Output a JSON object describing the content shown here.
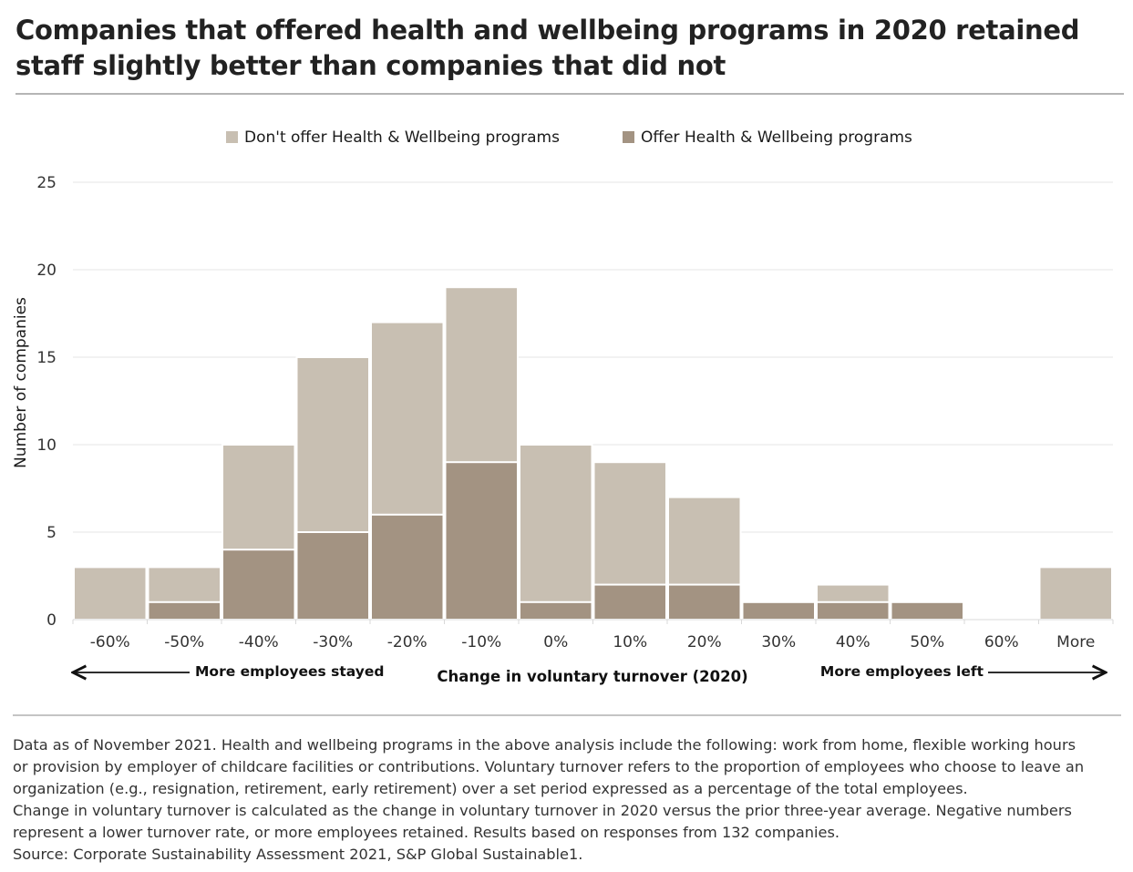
{
  "title": "Companies that offered health and wellbeing programs in 2020 retained staff slightly better than companies that did not",
  "colors": {
    "dont_offer": "#c8bfb2",
    "offer": "#a39382",
    "grid": "#e6e6e6",
    "text": "#1a1a1a"
  },
  "chart_data": {
    "type": "bar",
    "stacked": false,
    "overlapping": true,
    "categories": [
      "-60%",
      "-50%",
      "-40%",
      "-30%",
      "-20%",
      "-10%",
      "0%",
      "10%",
      "20%",
      "30%",
      "40%",
      "50%",
      "60%",
      "More"
    ],
    "series": [
      {
        "name": "Don't offer Health & Wellbeing programs",
        "color": "#c8bfb2",
        "values": [
          3,
          3,
          10,
          15,
          17,
          19,
          10,
          9,
          7,
          0,
          2,
          0,
          0,
          3
        ]
      },
      {
        "name": "Offer Health & Wellbeing programs",
        "color": "#a39382",
        "values": [
          0,
          1,
          4,
          5,
          6,
          9,
          1,
          2,
          2,
          1,
          1,
          1,
          0,
          0
        ]
      }
    ],
    "xlabel": "Change in voluntary turnover (2020)",
    "ylabel": "Number of companies",
    "ylim": [
      0,
      25
    ],
    "yticks": [
      0,
      5,
      10,
      15,
      20,
      25
    ],
    "grid": true,
    "legend_position": "top",
    "annotations": {
      "left": "More employees stayed",
      "right": "More employees left"
    }
  },
  "footnote": {
    "lines": [
      "Data as of November 2021. Health and wellbeing programs in the above analysis include the following: work from home, flexible working hours",
      "or provision by employer of childcare facilities or contributions. Voluntary turnover refers to the proportion of employees who choose to leave an",
      "organization (e.g., resignation, retirement, early retirement) over a set period expressed as a percentage of the total employees.",
      "Change in voluntary turnover is calculated as the change in voluntary turnover in 2020 versus the prior three-year average. Negative numbers",
      "represent a lower turnover rate, or more employees retained. Results based on responses from 132 companies.",
      "Source: Corporate Sustainability Assessment 2021, S&P Global Sustainable1."
    ]
  }
}
